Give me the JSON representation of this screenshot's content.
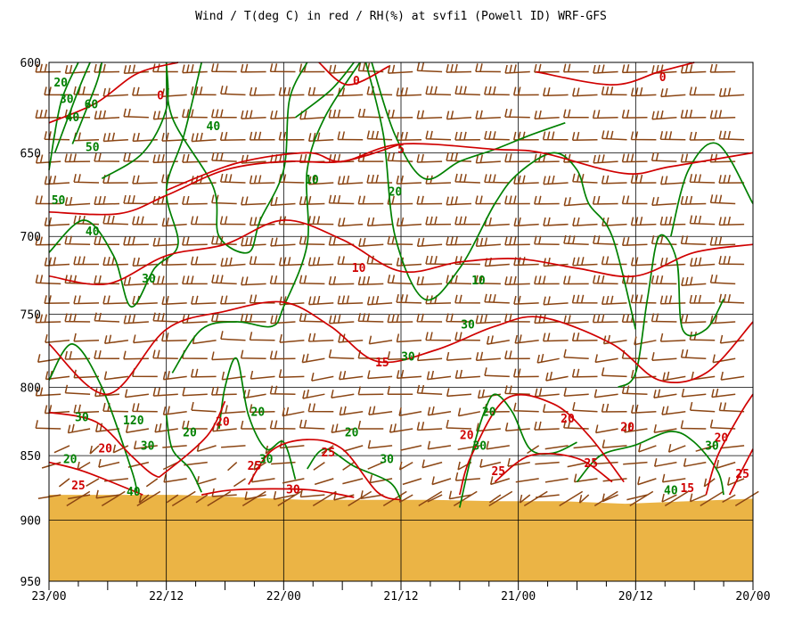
{
  "chart_data": {
    "type": "line",
    "title": "Wind / T(deg C) in red / RH(%) at svfi1 (Powell ID)  WRF-GFS",
    "xlabel": "",
    "ylabel": "",
    "x_ticks": [
      "23/00",
      "22/12",
      "22/00",
      "21/12",
      "21/00",
      "20/12",
      "20/00"
    ],
    "y_ticks": [
      600,
      650,
      700,
      750,
      800,
      850,
      900,
      950
    ],
    "ylim": [
      950,
      600
    ],
    "y_scale": "log-pressure",
    "grid": true,
    "colors": {
      "temperature": "#d00000",
      "rh": "#008000",
      "wind": "#8b4513",
      "terrain": "#ebb445",
      "grid": "#000000"
    },
    "terrain_top_hpa": [
      880,
      880,
      880,
      882,
      884,
      884,
      884,
      885,
      885,
      887,
      885,
      883
    ],
    "series": [
      {
        "name": "T(deg C)",
        "contour_labels": [
          {
            "text": "0",
            "t": 0.95,
            "p": 618
          },
          {
            "text": "0",
            "t": 2.62,
            "p": 610
          },
          {
            "text": "0",
            "t": 5.23,
            "p": 608
          },
          {
            "text": "5",
            "t": 3.0,
            "p": 648
          },
          {
            "text": "10",
            "t": 2.64,
            "p": 720
          },
          {
            "text": "15",
            "t": 2.84,
            "p": 783
          },
          {
            "text": "20",
            "t": 0.48,
            "p": 845
          },
          {
            "text": "20",
            "t": 1.48,
            "p": 825
          },
          {
            "text": "25",
            "t": 0.25,
            "p": 873
          },
          {
            "text": "25",
            "t": 1.75,
            "p": 858
          },
          {
            "text": "25",
            "t": 2.38,
            "p": 848
          },
          {
            "text": "30",
            "t": 2.08,
            "p": 876
          },
          {
            "text": "20",
            "t": 3.56,
            "p": 835
          },
          {
            "text": "20",
            "t": 4.42,
            "p": 823
          },
          {
            "text": "20",
            "t": 4.93,
            "p": 829
          },
          {
            "text": "25",
            "t": 3.83,
            "p": 862
          },
          {
            "text": "25",
            "t": 4.62,
            "p": 856
          },
          {
            "text": "15",
            "t": 5.44,
            "p": 875
          },
          {
            "text": "20",
            "t": 5.73,
            "p": 837
          },
          {
            "text": "25",
            "t": 5.91,
            "p": 864
          }
        ]
      },
      {
        "name": "RH(%)",
        "contour_labels": [
          {
            "text": "20",
            "t": 0.1,
            "p": 611
          },
          {
            "text": "30",
            "t": 0.15,
            "p": 620
          },
          {
            "text": "40",
            "t": 0.2,
            "p": 630
          },
          {
            "text": "60",
            "t": 0.36,
            "p": 623
          },
          {
            "text": "50",
            "t": 0.37,
            "p": 647
          },
          {
            "text": "40",
            "t": 1.4,
            "p": 635
          },
          {
            "text": "50",
            "t": 0.08,
            "p": 678
          },
          {
            "text": "40",
            "t": 0.37,
            "p": 697
          },
          {
            "text": "30",
            "t": 0.85,
            "p": 727
          },
          {
            "text": "30",
            "t": 0.28,
            "p": 822
          },
          {
            "text": "120",
            "t": 0.72,
            "p": 824
          },
          {
            "text": "30",
            "t": 0.84,
            "p": 843
          },
          {
            "text": "20",
            "t": 1.2,
            "p": 833
          },
          {
            "text": "20",
            "t": 0.18,
            "p": 853
          },
          {
            "text": "40",
            "t": 0.72,
            "p": 878
          },
          {
            "text": "10",
            "t": 2.24,
            "p": 666
          },
          {
            "text": "20",
            "t": 2.95,
            "p": 673
          },
          {
            "text": "10",
            "t": 3.66,
            "p": 728
          },
          {
            "text": "30",
            "t": 3.06,
            "p": 779
          },
          {
            "text": "30",
            "t": 3.57,
            "p": 757
          },
          {
            "text": "20",
            "t": 1.78,
            "p": 818
          },
          {
            "text": "30",
            "t": 1.85,
            "p": 853
          },
          {
            "text": "20",
            "t": 2.58,
            "p": 833
          },
          {
            "text": "30",
            "t": 2.88,
            "p": 853
          },
          {
            "text": "20",
            "t": 3.75,
            "p": 818
          },
          {
            "text": "30",
            "t": 3.67,
            "p": 843
          },
          {
            "text": "30",
            "t": 5.65,
            "p": 843
          },
          {
            "text": "40",
            "t": 5.3,
            "p": 877
          }
        ]
      },
      {
        "name": "Wind",
        "values": []
      }
    ]
  }
}
